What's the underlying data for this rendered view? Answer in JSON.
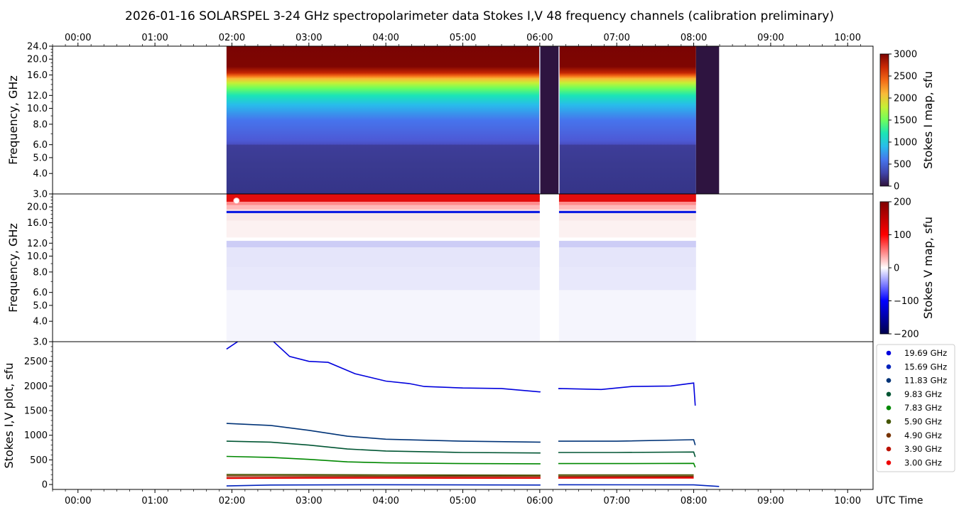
{
  "title": "2026-01-16  SOLARSPEL  3-24 GHz spectropolarimeter data   Stokes I,V   48 frequency channels   (calibration preliminary)",
  "time_ticks": [
    "00:00",
    "01:00",
    "02:00",
    "03:00",
    "04:00",
    "05:00",
    "06:00",
    "07:00",
    "08:00",
    "09:00",
    "10:00"
  ],
  "xlabel": "UTC Time",
  "chart_data": [
    {
      "type": "heatmap",
      "name": "stokes-i-map",
      "ylabel": "Frequency, GHz",
      "y_scale": "log",
      "ylim": [
        3.0,
        24.0
      ],
      "y_ticks": [
        "3.0",
        "4.0",
        "5.0",
        "6.0",
        "8.0",
        "10.0",
        "12.0",
        "16.0",
        "20.0",
        "24.0"
      ],
      "y_tick_values": [
        3,
        4,
        5,
        6,
        8,
        10,
        12,
        16,
        20,
        24
      ],
      "xlim_hours": [
        -0.33,
        10.33
      ],
      "data_span_hours": [
        1.93,
        8.33
      ],
      "gaps_hours": [
        [
          6.0,
          6.25
        ],
        [
          8.03,
          8.33
        ]
      ],
      "saturation_edge_ghz": 15.5,
      "low_band_edge_ghz": 6.0,
      "colorbar": {
        "label": "Stokes I map, sfu",
        "range": [
          0,
          3000
        ],
        "ticks": [
          "0",
          "500",
          "1000",
          "1500",
          "2000",
          "2500",
          "3000"
        ]
      }
    },
    {
      "type": "heatmap",
      "name": "stokes-v-map",
      "ylabel": "Frequency, GHz",
      "y_scale": "log",
      "ylim": [
        3.0,
        24.0
      ],
      "y_ticks": [
        "3.0",
        "4.0",
        "5.0",
        "6.0",
        "8.0",
        "10.0",
        "12.0",
        "16.0",
        "20.0"
      ],
      "y_tick_values": [
        3,
        4,
        5,
        6,
        8,
        10,
        12,
        16,
        20
      ],
      "colorbar": {
        "label": "Stokes V map, sfu",
        "range": [
          -200,
          200
        ],
        "ticks": [
          "−200",
          "−100",
          "0",
          "100",
          "200"
        ]
      }
    },
    {
      "type": "line",
      "name": "stokes-iv-plot",
      "ylabel": "Stokes I,V plot, sfu",
      "ylim": [
        -100,
        2900
      ],
      "y_ticks": [
        "0",
        "500",
        "1000",
        "1500",
        "2000",
        "2500"
      ],
      "y_tick_values": [
        0,
        500,
        1000,
        1500,
        2000,
        2500
      ],
      "series": [
        {
          "name": "19.69 GHz",
          "color": "#0000dd",
          "points": [
            [
              1.93,
              2750
            ],
            [
              2.15,
              2980
            ],
            [
              2.5,
              2960
            ],
            [
              2.75,
              2600
            ],
            [
              3.0,
              2500
            ],
            [
              3.25,
              2480
            ],
            [
              3.6,
              2250
            ],
            [
              4.0,
              2100
            ],
            [
              4.3,
              2050
            ],
            [
              4.5,
              1990
            ],
            [
              5.0,
              1960
            ],
            [
              5.5,
              1950
            ],
            [
              6.0,
              1880
            ],
            [
              6.25,
              1950
            ],
            [
              6.8,
              1930
            ],
            [
              7.2,
              1990
            ],
            [
              7.7,
              2000
            ],
            [
              8.0,
              2060
            ],
            [
              8.02,
              1600
            ]
          ]
        },
        {
          "name": "15.69 GHz",
          "color": "#0022bb",
          "points": [
            [
              1.93,
              -30
            ],
            [
              2.5,
              -10
            ],
            [
              4.0,
              -5
            ],
            [
              6.0,
              -10
            ],
            [
              6.25,
              -5
            ],
            [
              8.0,
              -8
            ],
            [
              8.33,
              -40
            ]
          ]
        },
        {
          "name": "11.83 GHz",
          "color": "#003377",
          "points": [
            [
              1.93,
              1240
            ],
            [
              2.5,
              1200
            ],
            [
              3.0,
              1100
            ],
            [
              3.5,
              980
            ],
            [
              4.0,
              920
            ],
            [
              5.0,
              880
            ],
            [
              6.0,
              860
            ],
            [
              6.25,
              880
            ],
            [
              7.0,
              880
            ],
            [
              8.0,
              910
            ],
            [
              8.02,
              800
            ]
          ]
        },
        {
          "name": "9.83 GHz",
          "color": "#005533",
          "points": [
            [
              1.93,
              880
            ],
            [
              2.5,
              860
            ],
            [
              3.0,
              800
            ],
            [
              3.5,
              720
            ],
            [
              4.0,
              680
            ],
            [
              5.0,
              650
            ],
            [
              6.0,
              640
            ],
            [
              6.25,
              650
            ],
            [
              7.0,
              650
            ],
            [
              8.0,
              660
            ],
            [
              8.02,
              560
            ]
          ]
        },
        {
          "name": "7.83 GHz",
          "color": "#008800",
          "points": [
            [
              1.93,
              570
            ],
            [
              2.5,
              550
            ],
            [
              3.0,
              510
            ],
            [
              3.5,
              460
            ],
            [
              4.0,
              440
            ],
            [
              5.0,
              425
            ],
            [
              6.0,
              420
            ],
            [
              6.25,
              425
            ],
            [
              7.0,
              425
            ],
            [
              8.0,
              430
            ],
            [
              8.02,
              350
            ]
          ]
        },
        {
          "name": "5.90 GHz",
          "color": "#445500",
          "points": [
            [
              1.93,
              205
            ],
            [
              3.0,
              200
            ],
            [
              4.0,
              195
            ],
            [
              6.0,
              190
            ],
            [
              6.25,
              195
            ],
            [
              8.0,
              195
            ]
          ]
        },
        {
          "name": "4.90 GHz",
          "color": "#773300",
          "points": [
            [
              1.93,
              175
            ],
            [
              3.0,
              172
            ],
            [
              4.0,
              170
            ],
            [
              6.0,
              168
            ],
            [
              6.25,
              170
            ],
            [
              8.0,
              170
            ]
          ]
        },
        {
          "name": "3.90 GHz",
          "color": "#bb1100",
          "points": [
            [
              1.93,
              140
            ],
            [
              3.0,
              145
            ],
            [
              4.0,
              145
            ],
            [
              6.0,
              140
            ],
            [
              6.25,
              145
            ],
            [
              8.0,
              148
            ]
          ]
        },
        {
          "name": "3.00 GHz",
          "color": "#ee0000",
          "points": [
            [
              1.93,
              125
            ],
            [
              3.0,
              130
            ],
            [
              4.0,
              130
            ],
            [
              6.0,
              128
            ],
            [
              6.25,
              130
            ],
            [
              8.0,
              132
            ]
          ]
        }
      ]
    }
  ]
}
